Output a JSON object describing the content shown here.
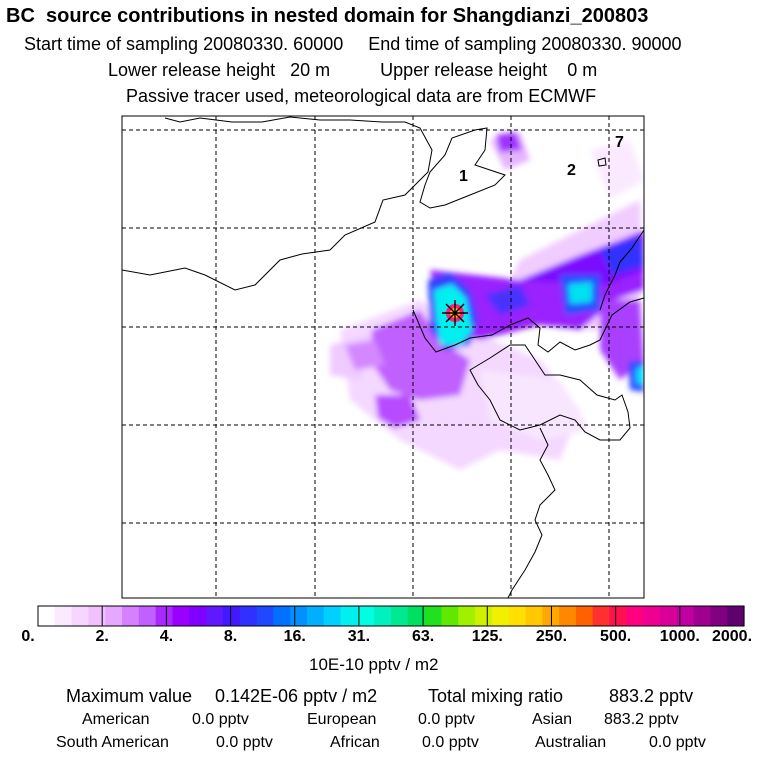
{
  "title": "BC  source contributions in nested domain for Shangdianzi_200803",
  "header": {
    "start_label": "Start time of sampling",
    "start_value": "20080330. 60000",
    "end_label": "End time of sampling",
    "end_value": "20080330. 90000",
    "lower_label": "Lower release height",
    "lower_value": "20 m",
    "upper_label": "Upper release height",
    "upper_value": "0 m",
    "note": "Passive tracer used, meteorological data are from ECMWF"
  },
  "map": {
    "region_labels": [
      "1",
      "2",
      "7"
    ],
    "station_marker": "Shangdianzi"
  },
  "colorbar": {
    "tick_labels": [
      "0.",
      "2.",
      "4.",
      "8.",
      "16.",
      "31.",
      "63.",
      "125.",
      "250.",
      "500.",
      "1000.",
      "2000."
    ],
    "colors": [
      "#ffffff",
      "#fbeaff",
      "#f6d6ff",
      "#f0c0ff",
      "#e6a8ff",
      "#d480ff",
      "#c060ff",
      "#aa28ff",
      "#9a00ff",
      "#8000ff",
      "#6018ff",
      "#4418ff",
      "#3030ff",
      "#2048ff",
      "#0070ff",
      "#0090ff",
      "#00b0ff",
      "#00d0ff",
      "#00f0f0",
      "#00ffe0",
      "#00f0c0",
      "#00e890",
      "#00e060",
      "#20e020",
      "#60e800",
      "#a0f000",
      "#d0f000",
      "#f0f000",
      "#ffe000",
      "#ffc800",
      "#ffa800",
      "#ff8800",
      "#ff6000",
      "#ff3030",
      "#ff1050",
      "#ff0080",
      "#f00090",
      "#d80098",
      "#c000a0",
      "#a00090",
      "#800080",
      "#60006c"
    ],
    "units": "10E-10 pptv / m2"
  },
  "stats": {
    "max_label": "Maximum value",
    "max_value": "0.142E-06 pptv / m2",
    "total_label": "Total mixing ratio",
    "total_value": "883.2 pptv",
    "sources": [
      {
        "name": "American",
        "value": "0.0 pptv"
      },
      {
        "name": "European",
        "value": "0.0 pptv"
      },
      {
        "name": "Asian",
        "value": "883.2 pptv"
      },
      {
        "name": "South American",
        "value": "0.0 pptv"
      },
      {
        "name": "African",
        "value": "0.0 pptv"
      },
      {
        "name": "Australian",
        "value": "0.0 pptv"
      }
    ]
  }
}
